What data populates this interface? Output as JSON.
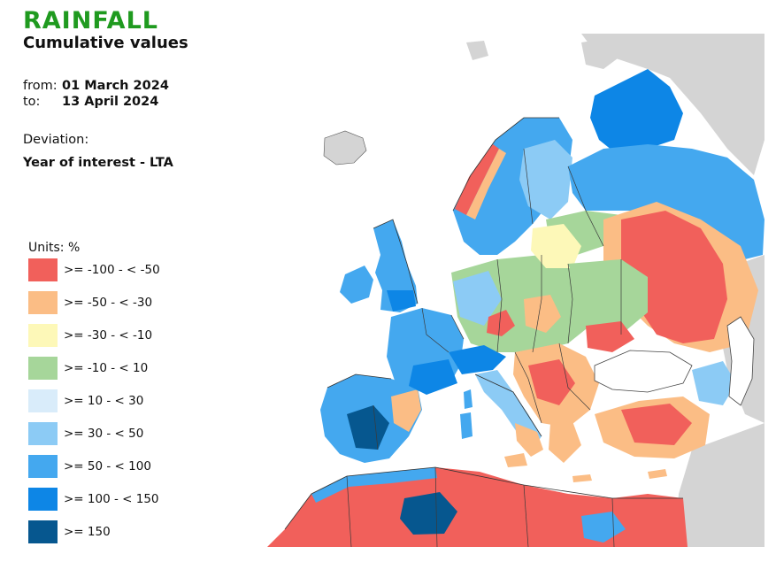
{
  "header": {
    "title": "RAINFALL",
    "subtitle": "Cumulative values",
    "from_label": "from:",
    "from_value": "01 March 2024",
    "to_label": "to:",
    "to_value": "13 April 2024",
    "deviation_label": "Deviation:",
    "deviation_value": "Year of interest - LTA"
  },
  "legend": {
    "units": "Units: %",
    "items": [
      {
        "label": ">= -100 - < -50",
        "color": "#f1605b"
      },
      {
        "label": ">= -50 - < -30",
        "color": "#fbbd85"
      },
      {
        "label": ">= -30 - < -10",
        "color": "#fdf8b8"
      },
      {
        "label": ">= -10 - < 10",
        "color": "#a6d69a"
      },
      {
        "label": ">= 10 - < 30",
        "color": "#d9ecfa"
      },
      {
        "label": ">= 30 - < 50",
        "color": "#8ccbf5"
      },
      {
        "label": ">= 50 - < 100",
        "color": "#44a8ef"
      },
      {
        "label": ">= 100 - < 150",
        "color": "#0d86e6"
      },
      {
        "label": ">= 150",
        "color": "#06578f"
      }
    ]
  },
  "map": {
    "sea_color": "#ffffff",
    "nodata_color": "#d4d4d4",
    "border_color": "#3a3a3a"
  }
}
